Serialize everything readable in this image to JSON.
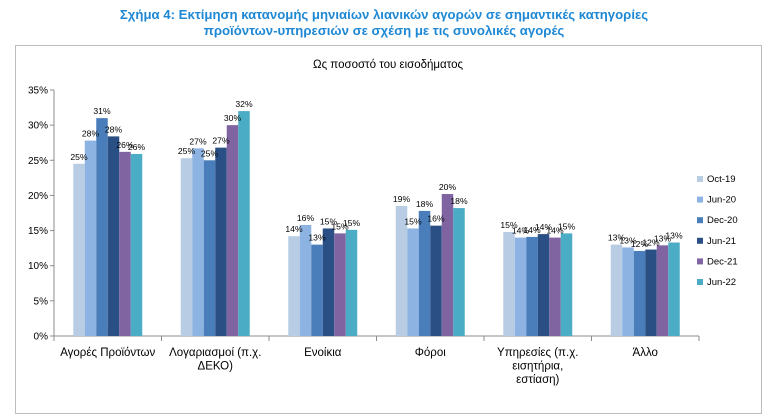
{
  "figure_title_line1": "Σχήμα 4: Εκτίμηση κατανομής μηνιαίων λιανικών αγορών σε σημαντικές κατηγορίες",
  "figure_title_line2": "προϊόντων-υπηρεσιών σε σχέση με τις συνολικές αγορές",
  "chart_data": {
    "type": "bar",
    "title": "Ως ποσοστό του εισοδήματος",
    "xlabel": "",
    "ylabel": "",
    "ylim": [
      0,
      35
    ],
    "yticks": [
      "0%",
      "5%",
      "10%",
      "15%",
      "20%",
      "25%",
      "30%",
      "35%"
    ],
    "grid": false,
    "legend_position": "right",
    "categories": [
      [
        "Αγορές Προϊόντων"
      ],
      [
        "Λογαριασμοί (π.χ.",
        "ΔΕΚΟ)"
      ],
      [
        "Ενοίκια"
      ],
      [
        "Φόροι"
      ],
      [
        "Υπηρεσίες (π.χ.",
        "εισητήρια,",
        "εστίαση)"
      ],
      [
        "Άλλο"
      ]
    ],
    "series": [
      {
        "name": "Oct-19",
        "color": "#b8cde4",
        "values": [
          24.5,
          25.3,
          14.2,
          18.5,
          14.8,
          13.0
        ],
        "labels": [
          "25%",
          "25%",
          "14%",
          "19%",
          "15%",
          "13%"
        ]
      },
      {
        "name": "Jun-20",
        "color": "#8db3e2",
        "values": [
          27.8,
          26.7,
          15.8,
          15.3,
          14.0,
          12.6
        ],
        "labels": [
          "28%",
          "27%",
          "16%",
          "15%",
          "14%",
          "13%"
        ]
      },
      {
        "name": "Dec-20",
        "color": "#4a7ebb",
        "values": [
          31.0,
          25.0,
          13.0,
          17.8,
          14.1,
          12.1
        ],
        "labels": [
          "31%",
          "25%",
          "13%",
          "18%",
          "14%",
          "12%"
        ]
      },
      {
        "name": "Jun-21",
        "color": "#2a4f84",
        "values": [
          28.4,
          26.8,
          15.3,
          15.7,
          14.5,
          12.3
        ],
        "labels": [
          "28%",
          "27%",
          "15%",
          "16%",
          "14%",
          "12%"
        ]
      },
      {
        "name": "Dec-21",
        "color": "#8064a2",
        "values": [
          26.2,
          30.0,
          14.6,
          20.2,
          14.0,
          12.9
        ],
        "labels": [
          "26%",
          "30%",
          "15%",
          "20%",
          "14%",
          "13%"
        ]
      },
      {
        "name": "Jun-22",
        "color": "#4bacc6",
        "values": [
          25.9,
          32.0,
          15.1,
          18.2,
          14.6,
          13.3
        ],
        "labels": [
          "26%",
          "32%",
          "15%",
          "18%",
          "15%",
          "13%"
        ]
      }
    ]
  }
}
